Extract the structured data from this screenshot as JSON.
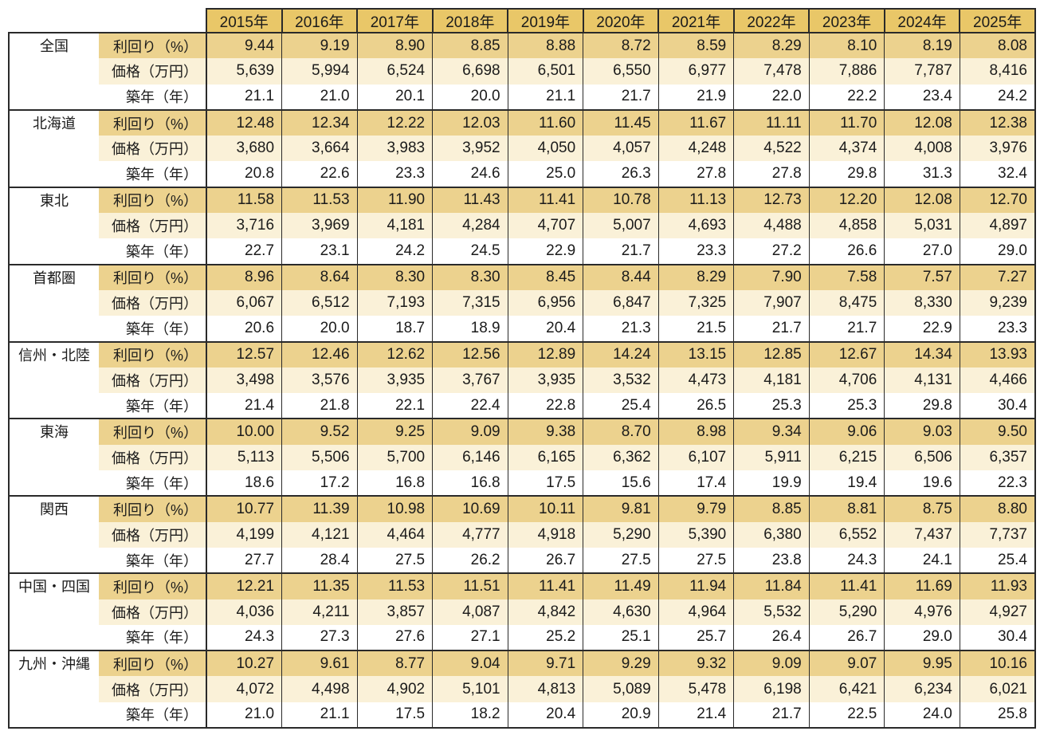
{
  "colors": {
    "header_bg": "#e9c768",
    "yield_row_bg": "#ecd28e",
    "price_row_bg": "#faf1d8",
    "age_row_bg": "#ffffff",
    "border": "#2a2a2a",
    "text": "#1b1b1b"
  },
  "chart_data": {
    "type": "table",
    "title": "",
    "years": [
      "2015年",
      "2016年",
      "2017年",
      "2018年",
      "2019年",
      "2020年",
      "2021年",
      "2022年",
      "2023年",
      "2024年",
      "2025年"
    ],
    "metrics": [
      "利回り（%）",
      "価格（万円）",
      "築年（年）"
    ],
    "regions": [
      {
        "name": "全国",
        "yield": [
          "9.44",
          "9.19",
          "8.90",
          "8.85",
          "8.88",
          "8.72",
          "8.59",
          "8.29",
          "8.10",
          "8.19",
          "8.08"
        ],
        "price": [
          "5,639",
          "5,994",
          "6,524",
          "6,698",
          "6,501",
          "6,550",
          "6,977",
          "7,478",
          "7,886",
          "7,787",
          "8,416"
        ],
        "age": [
          "21.1",
          "21.0",
          "20.1",
          "20.0",
          "21.1",
          "21.7",
          "21.9",
          "22.0",
          "22.2",
          "23.4",
          "24.2"
        ]
      },
      {
        "name": "北海道",
        "yield": [
          "12.48",
          "12.34",
          "12.22",
          "12.03",
          "11.60",
          "11.45",
          "11.67",
          "11.11",
          "11.70",
          "12.08",
          "12.38"
        ],
        "price": [
          "3,680",
          "3,664",
          "3,983",
          "3,952",
          "4,050",
          "4,057",
          "4,248",
          "4,522",
          "4,374",
          "4,008",
          "3,976"
        ],
        "age": [
          "20.8",
          "22.6",
          "23.3",
          "24.6",
          "25.0",
          "26.3",
          "27.8",
          "27.8",
          "29.8",
          "31.3",
          "32.4"
        ]
      },
      {
        "name": "東北",
        "yield": [
          "11.58",
          "11.53",
          "11.90",
          "11.43",
          "11.41",
          "10.78",
          "11.13",
          "12.73",
          "12.20",
          "12.08",
          "12.70"
        ],
        "price": [
          "3,716",
          "3,969",
          "4,181",
          "4,284",
          "4,707",
          "5,007",
          "4,693",
          "4,488",
          "4,858",
          "5,031",
          "4,897"
        ],
        "age": [
          "22.7",
          "23.1",
          "24.2",
          "24.5",
          "22.9",
          "21.7",
          "23.3",
          "27.2",
          "26.6",
          "27.0",
          "29.0"
        ]
      },
      {
        "name": "首都圏",
        "yield": [
          "8.96",
          "8.64",
          "8.30",
          "8.30",
          "8.45",
          "8.44",
          "8.29",
          "7.90",
          "7.58",
          "7.57",
          "7.27"
        ],
        "price": [
          "6,067",
          "6,512",
          "7,193",
          "7,315",
          "6,956",
          "6,847",
          "7,325",
          "7,907",
          "8,475",
          "8,330",
          "9,239"
        ],
        "age": [
          "20.6",
          "20.0",
          "18.7",
          "18.9",
          "20.4",
          "21.3",
          "21.5",
          "21.7",
          "21.7",
          "22.9",
          "23.3"
        ]
      },
      {
        "name": "信州・北陸",
        "yield": [
          "12.57",
          "12.46",
          "12.62",
          "12.56",
          "12.89",
          "14.24",
          "13.15",
          "12.85",
          "12.67",
          "14.34",
          "13.93"
        ],
        "price": [
          "3,498",
          "3,576",
          "3,935",
          "3,767",
          "3,935",
          "3,532",
          "4,473",
          "4,181",
          "4,706",
          "4,131",
          "4,466"
        ],
        "age": [
          "21.4",
          "21.8",
          "22.1",
          "22.4",
          "22.8",
          "25.4",
          "26.5",
          "25.3",
          "25.3",
          "29.8",
          "30.4"
        ]
      },
      {
        "name": "東海",
        "yield": [
          "10.00",
          "9.52",
          "9.25",
          "9.09",
          "9.38",
          "8.70",
          "8.98",
          "9.34",
          "9.06",
          "9.03",
          "9.50"
        ],
        "price": [
          "5,113",
          "5,506",
          "5,700",
          "6,146",
          "6,165",
          "6,362",
          "6,107",
          "5,911",
          "6,215",
          "6,506",
          "6,357"
        ],
        "age": [
          "18.6",
          "17.2",
          "16.8",
          "16.8",
          "17.5",
          "15.6",
          "17.4",
          "19.9",
          "19.4",
          "19.6",
          "22.3"
        ]
      },
      {
        "name": "関西",
        "yield": [
          "10.77",
          "11.39",
          "10.98",
          "10.69",
          "10.11",
          "9.81",
          "9.79",
          "8.85",
          "8.81",
          "8.75",
          "8.80"
        ],
        "price": [
          "4,199",
          "4,121",
          "4,464",
          "4,777",
          "4,918",
          "5,290",
          "5,390",
          "6,380",
          "6,552",
          "7,437",
          "7,737"
        ],
        "age": [
          "27.7",
          "28.4",
          "27.5",
          "26.2",
          "26.7",
          "27.5",
          "27.5",
          "23.8",
          "24.3",
          "24.1",
          "25.4"
        ]
      },
      {
        "name": "中国・四国",
        "yield": [
          "12.21",
          "11.35",
          "11.53",
          "11.51",
          "11.41",
          "11.49",
          "11.94",
          "11.84",
          "11.41",
          "11.69",
          "11.93"
        ],
        "price": [
          "4,036",
          "4,211",
          "3,857",
          "4,087",
          "4,842",
          "4,630",
          "4,964",
          "5,532",
          "5,290",
          "4,976",
          "4,927"
        ],
        "age": [
          "24.3",
          "27.3",
          "27.6",
          "27.1",
          "25.2",
          "25.1",
          "25.7",
          "26.4",
          "26.7",
          "29.0",
          "30.4"
        ]
      },
      {
        "name": "九州・沖縄",
        "yield": [
          "10.27",
          "9.61",
          "8.77",
          "9.04",
          "9.71",
          "9.29",
          "9.32",
          "9.09",
          "9.07",
          "9.95",
          "10.16"
        ],
        "price": [
          "4,072",
          "4,498",
          "4,902",
          "5,101",
          "4,813",
          "5,089",
          "5,478",
          "6,198",
          "6,421",
          "6,234",
          "6,021"
        ],
        "age": [
          "21.0",
          "21.1",
          "17.5",
          "18.2",
          "20.4",
          "20.9",
          "21.4",
          "21.7",
          "22.5",
          "24.0",
          "25.8"
        ]
      }
    ]
  }
}
